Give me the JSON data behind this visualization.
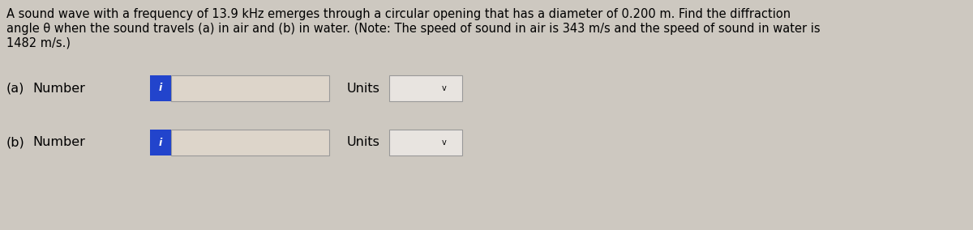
{
  "background_color": "#cdc8c0",
  "title_text_line1": "A sound wave with a frequency of 13.9 kHz emerges through a circular opening that has a diameter of 0.200 m. Find the diffraction",
  "title_text_line2": "angle θ when the sound travels (a) in air and (b) in water. (Note: The speed of sound in air is 343 m/s and the speed of sound in water is",
  "title_text_line3": "1482 m/s.)",
  "row_a_label_1": "(a)",
  "row_a_label_2": "Number",
  "row_b_label_1": "(b)",
  "row_b_label_2": "Number",
  "units_label": "Units",
  "info_button_color": "#2244cc",
  "input_box_color": "#ddd5ca",
  "input_box_border": "#999999",
  "units_box_color": "#e8e4e0",
  "units_box_border": "#999999",
  "chevron_char": "v",
  "font_size_title": 10.5,
  "font_size_labels": 11.5
}
